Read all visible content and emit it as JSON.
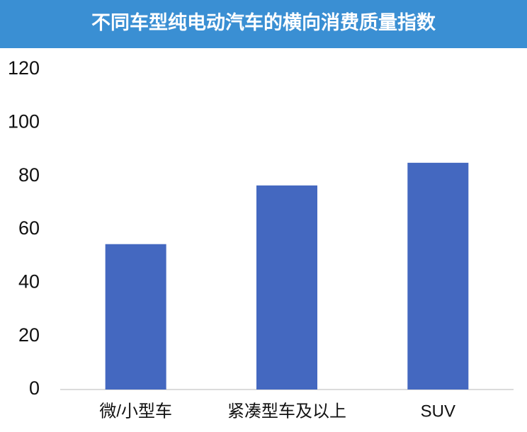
{
  "chart_data": {
    "type": "bar",
    "title": "不同车型纯电动汽车的横向消费质量指数",
    "categories": [
      "微/小型车",
      "紧凑型车及以上",
      "SUV"
    ],
    "values": [
      54.5,
      76.5,
      85
    ],
    "color": "#4468c0",
    "ylim": [
      0,
      120
    ],
    "yticks": [
      0,
      20,
      40,
      60,
      80,
      100,
      120
    ],
    "grid": false
  }
}
